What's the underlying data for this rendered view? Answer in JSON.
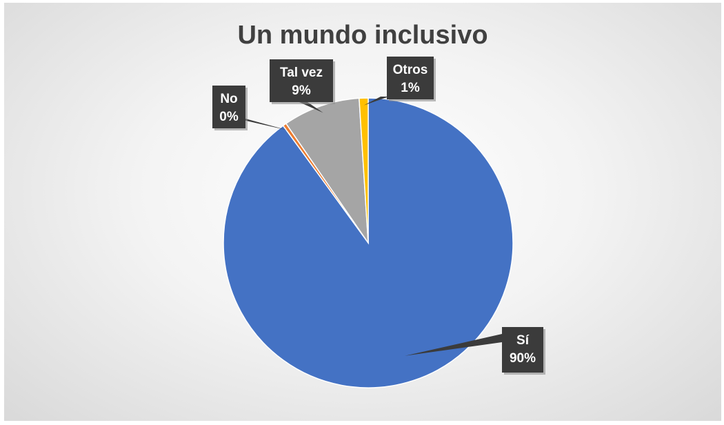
{
  "chart_data": {
    "type": "pie",
    "title": "Un mundo inclusivo",
    "categories": [
      "Sí",
      "No",
      "Tal vez",
      "Otros"
    ],
    "values": [
      90,
      0.4,
      8.6,
      1
    ],
    "data_labels": [
      "90%",
      "0%",
      "9%",
      "1%"
    ],
    "colors": [
      "#4472c4",
      "#ed7d31",
      "#a5a5a5",
      "#ffc000"
    ],
    "legend": "none",
    "label_style": "callout"
  }
}
